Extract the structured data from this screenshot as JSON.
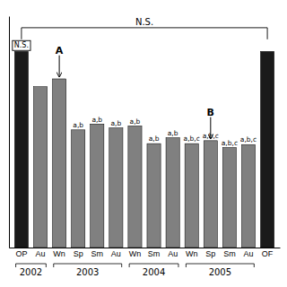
{
  "chart_data": {
    "type": "bar",
    "categories": [
      "OP",
      "Au",
      "Wn",
      "Sp",
      "Sm",
      "Au",
      "Wn",
      "Sm",
      "Au",
      "Wn",
      "Sp",
      "Sm",
      "Au",
      "OF"
    ],
    "values": [
      10.0,
      8.2,
      8.6,
      6.0,
      6.3,
      6.1,
      6.2,
      5.3,
      5.6,
      5.3,
      5.45,
      5.1,
      5.25,
      10.0
    ],
    "colors": [
      "#1a1a1a",
      "#808080",
      "#808080",
      "#808080",
      "#808080",
      "#808080",
      "#808080",
      "#808080",
      "#808080",
      "#808080",
      "#808080",
      "#808080",
      "#808080",
      "#1a1a1a"
    ],
    "ylim": [
      0,
      11.8
    ],
    "tick_labels": "x",
    "labels": [
      null,
      null,
      null,
      "a,b",
      "a,b",
      "a,b",
      "a,b",
      "a,b",
      "a,b",
      "a,b,c",
      "a,b,c",
      "a,b,c",
      "a,b,c",
      null
    ],
    "groups": [
      {
        "label": "2002",
        "start": 0,
        "end": 1
      },
      {
        "label": "2003",
        "start": 2,
        "end": 5
      },
      {
        "label": "2004",
        "start": 6,
        "end": 8
      },
      {
        "label": "2005",
        "start": 9,
        "end": 12
      }
    ],
    "annotations": [
      {
        "text": "N.S.",
        "bar": 0,
        "kind": "box"
      },
      {
        "text": "A",
        "bar": 2,
        "kind": "arrow"
      },
      {
        "text": "B",
        "bar": 10,
        "kind": "arrow"
      }
    ],
    "bracket": {
      "text": "N.S.",
      "from": 0,
      "to": 13
    }
  }
}
